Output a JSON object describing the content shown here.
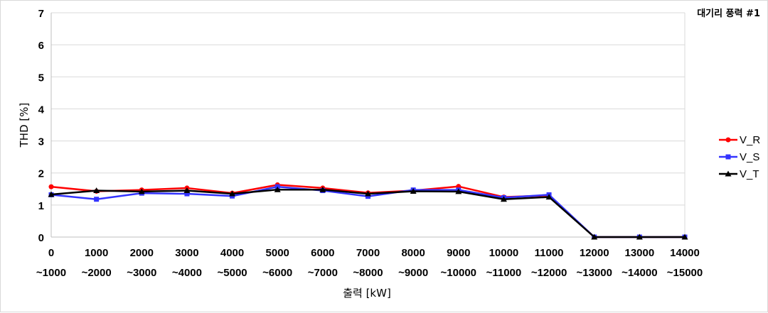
{
  "chart_data": {
    "type": "line",
    "title": "",
    "annotation": "대기리 풍력 #1",
    "xlabel": "출력 [kW]",
    "ylabel": "THD [%]",
    "ylim": [
      0,
      7
    ],
    "yticks": [
      0,
      1,
      2,
      3,
      4,
      5,
      6,
      7
    ],
    "grid": true,
    "legend_position": "right",
    "categories": [
      [
        "0",
        "~1000"
      ],
      [
        "1000",
        "~2000"
      ],
      [
        "2000",
        "~3000"
      ],
      [
        "3000",
        "~4000"
      ],
      [
        "4000",
        "~5000"
      ],
      [
        "5000",
        "~6000"
      ],
      [
        "6000",
        "~7000"
      ],
      [
        "7000",
        "~8000"
      ],
      [
        "8000",
        "~9000"
      ],
      [
        "9000",
        "~10000"
      ],
      [
        "10000",
        "~11000"
      ],
      [
        "11000",
        "~12000"
      ],
      [
        "12000",
        "~13000"
      ],
      [
        "13000",
        "~14000"
      ],
      [
        "14000",
        "~15000"
      ]
    ],
    "series": [
      {
        "name": "V_R",
        "color": "#ff0000",
        "marker": "circle",
        "values": [
          1.57,
          1.43,
          1.47,
          1.53,
          1.37,
          1.63,
          1.53,
          1.38,
          1.45,
          1.58,
          1.25,
          1.3,
          0,
          0,
          0
        ]
      },
      {
        "name": "V_S",
        "color": "#3333ff",
        "marker": "square",
        "values": [
          1.32,
          1.18,
          1.37,
          1.35,
          1.28,
          1.57,
          1.45,
          1.27,
          1.47,
          1.47,
          1.23,
          1.32,
          0,
          0,
          0
        ]
      },
      {
        "name": "V_T",
        "color": "#000000",
        "marker": "triangle",
        "values": [
          1.33,
          1.45,
          1.42,
          1.45,
          1.35,
          1.48,
          1.48,
          1.35,
          1.43,
          1.42,
          1.18,
          1.25,
          0,
          0,
          0
        ]
      }
    ]
  }
}
